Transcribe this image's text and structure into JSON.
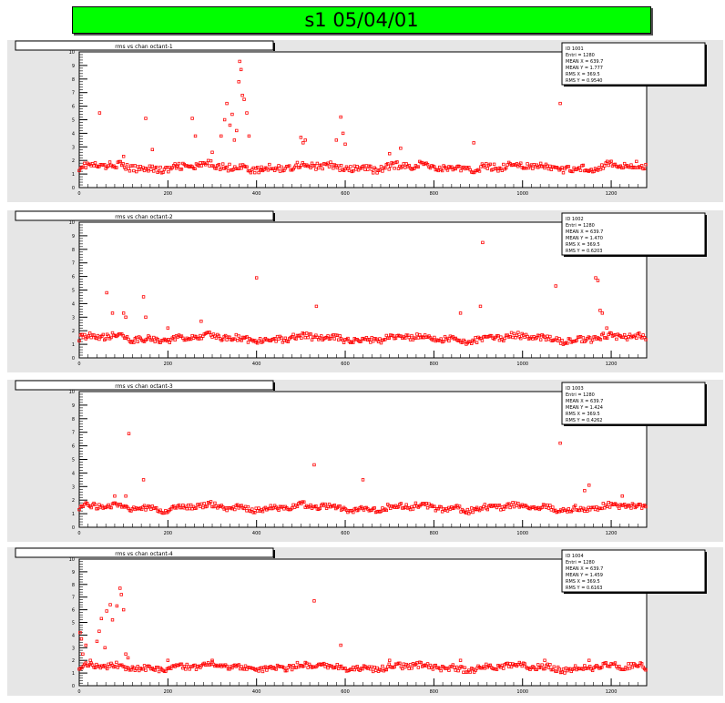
{
  "canvas": {
    "banner_title": "s1  05/04/01"
  },
  "colors": {
    "marker": "#ff0000",
    "pad_bg": "#e6e6e6",
    "frame_bg": "#ffffff",
    "banner_bg": "#00ff00"
  },
  "chart_data": [
    {
      "type": "scatter",
      "title": "rms vs chan octant-1",
      "xlim": [
        0,
        1280
      ],
      "ylim": [
        0,
        10
      ],
      "x_ticks": [
        "0",
        "200",
        "400",
        "600",
        "800",
        "1000",
        "1200"
      ],
      "y_ticks": [
        "0",
        "1",
        "2",
        "3",
        "4",
        "5",
        "6",
        "7",
        "8",
        "9",
        "10"
      ],
      "stats": [
        "ID 1001",
        "Entri = 1280",
        "MEAN X = 639.7",
        "MEAN Y = 1.777",
        "RMS X = 369.5",
        "RMS Y = 0.9540"
      ],
      "baseline": 1.5,
      "noise": 0.25,
      "points": [
        [
          46,
          5.5
        ],
        [
          100,
          2.3
        ],
        [
          150,
          5.1
        ],
        [
          165,
          2.8
        ],
        [
          220,
          1.6
        ],
        [
          255,
          5.1
        ],
        [
          262,
          3.8
        ],
        [
          300,
          2.6
        ],
        [
          320,
          3.8
        ],
        [
          328,
          5.0
        ],
        [
          333,
          6.2
        ],
        [
          340,
          4.6
        ],
        [
          345,
          5.4
        ],
        [
          350,
          3.5
        ],
        [
          355,
          4.2
        ],
        [
          360,
          7.8
        ],
        [
          362,
          9.3
        ],
        [
          365,
          8.7
        ],
        [
          368,
          6.8
        ],
        [
          372,
          6.5
        ],
        [
          378,
          5.5
        ],
        [
          383,
          3.8
        ],
        [
          410,
          1.3
        ],
        [
          500,
          3.7
        ],
        [
          505,
          3.3
        ],
        [
          510,
          3.5
        ],
        [
          580,
          3.5
        ],
        [
          590,
          5.2
        ],
        [
          595,
          4.0
        ],
        [
          600,
          3.2
        ],
        [
          700,
          2.5
        ],
        [
          725,
          2.9
        ],
        [
          890,
          3.3
        ],
        [
          1085,
          6.2
        ]
      ]
    },
    {
      "type": "scatter",
      "title": "rms vs chan octant-2",
      "xlim": [
        0,
        1280
      ],
      "ylim": [
        0,
        10
      ],
      "x_ticks": [
        "0",
        "200",
        "400",
        "600",
        "800",
        "1000",
        "1200"
      ],
      "y_ticks": [
        "0",
        "1",
        "2",
        "3",
        "4",
        "5",
        "6",
        "7",
        "8",
        "9",
        "10"
      ],
      "stats": [
        "ID 1002",
        "Entri = 1280",
        "MEAN X = 639.7",
        "MEAN Y = 1.470",
        "RMS X = 369.5",
        "RMS Y = 0.6203"
      ],
      "baseline": 1.45,
      "noise": 0.22,
      "points": [
        [
          62,
          4.8
        ],
        [
          75,
          3.3
        ],
        [
          100,
          3.3
        ],
        [
          105,
          3.0
        ],
        [
          145,
          4.5
        ],
        [
          150,
          3.0
        ],
        [
          200,
          2.2
        ],
        [
          275,
          2.7
        ],
        [
          400,
          5.9
        ],
        [
          535,
          3.8
        ],
        [
          860,
          3.3
        ],
        [
          905,
          3.8
        ],
        [
          910,
          8.5
        ],
        [
          1075,
          5.3
        ],
        [
          1165,
          5.9
        ],
        [
          1170,
          5.7
        ],
        [
          1175,
          3.5
        ],
        [
          1180,
          3.3
        ],
        [
          1190,
          2.2
        ]
      ]
    },
    {
      "type": "scatter",
      "title": "rms vs chan octant-3",
      "xlim": [
        0,
        1280
      ],
      "ylim": [
        0,
        10
      ],
      "x_ticks": [
        "0",
        "200",
        "400",
        "600",
        "800",
        "1000",
        "1200"
      ],
      "y_ticks": [
        "0",
        "1",
        "2",
        "3",
        "4",
        "5",
        "6",
        "7",
        "8",
        "9",
        "10"
      ],
      "stats": [
        "ID 1003",
        "Entri = 1280",
        "MEAN X = 639.7",
        "MEAN Y = 1.424",
        "RMS X = 369.5",
        "RMS Y = 0.4262"
      ],
      "baseline": 1.45,
      "noise": 0.2,
      "points": [
        [
          80,
          2.3
        ],
        [
          105,
          2.3
        ],
        [
          112,
          6.9
        ],
        [
          145,
          3.5
        ],
        [
          530,
          4.6
        ],
        [
          640,
          3.5
        ],
        [
          895,
          1.3
        ],
        [
          1085,
          6.2
        ],
        [
          1140,
          2.7
        ],
        [
          1150,
          3.1
        ],
        [
          1225,
          2.3
        ]
      ]
    },
    {
      "type": "scatter",
      "title": "rms vs chan octant-4",
      "xlim": [
        0,
        1280
      ],
      "ylim": [
        0,
        10
      ],
      "x_ticks": [
        "0",
        "200",
        "400",
        "600",
        "800",
        "1000",
        "1200"
      ],
      "y_ticks": [
        "0",
        "1",
        "2",
        "3",
        "4",
        "5",
        "6",
        "7",
        "8",
        "9",
        "10"
      ],
      "stats": [
        "ID 1004",
        "Entri = 1280",
        "MEAN X = 639.7",
        "MEAN Y = 1.459",
        "RMS X = 369.5",
        "RMS Y = 0.6163"
      ],
      "baseline": 1.45,
      "noise": 0.22,
      "points": [
        [
          2,
          4.2
        ],
        [
          5,
          3.7
        ],
        [
          8,
          2.5
        ],
        [
          15,
          3.2
        ],
        [
          25,
          2.0
        ],
        [
          40,
          3.5
        ],
        [
          45,
          4.3
        ],
        [
          50,
          5.3
        ],
        [
          58,
          3.0
        ],
        [
          62,
          5.9
        ],
        [
          70,
          6.4
        ],
        [
          75,
          5.2
        ],
        [
          85,
          6.3
        ],
        [
          92,
          7.7
        ],
        [
          95,
          7.2
        ],
        [
          100,
          6.0
        ],
        [
          105,
          2.5
        ],
        [
          110,
          2.2
        ],
        [
          200,
          2.0
        ],
        [
          300,
          2.0
        ],
        [
          530,
          6.7
        ],
        [
          590,
          3.2
        ],
        [
          700,
          2.0
        ],
        [
          860,
          2.0
        ],
        [
          1050,
          2.0
        ],
        [
          1150,
          2.0
        ]
      ]
    }
  ]
}
